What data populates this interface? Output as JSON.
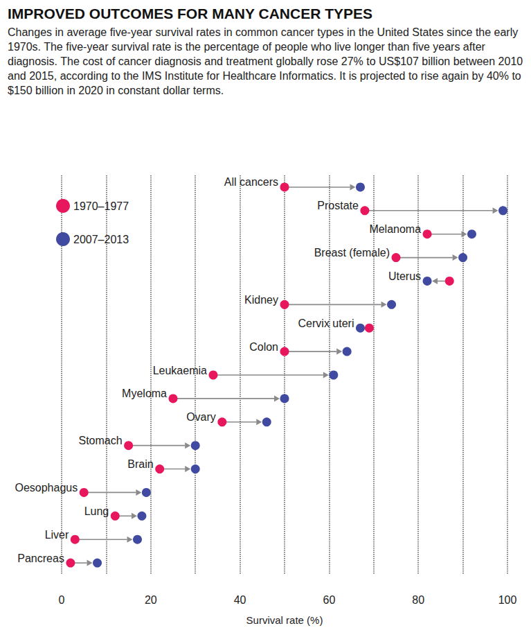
{
  "chart_data": {
    "type": "dumbbell",
    "title": "IMPROVED OUTCOMES FOR MANY CANCER TYPES",
    "subtitle": "Changes in average five-year survival rates in common cancer types in the United States since the early 1970s. The five-year survival rate is the percentage of people who live longer than five years after diagnosis. The cost of cancer diagnosis and treatment globally rose 27% to US$107 billion between 2010 and 2015, according to the IMS Institute for Healthcare Informatics. It is projected to rise again by 40% to $150 billion in 2020 in constant dollar terms.",
    "orientation": "horizontal",
    "categories": [
      "All cancers",
      "Prostate",
      "Melanoma",
      "Breast (female)",
      "Uterus",
      "Kidney",
      "Cervix uteri",
      "Colon",
      "Leukaemia",
      "Myeloma",
      "Ovary",
      "Stomach",
      "Brain",
      "Oesophagus",
      "Lung",
      "Liver",
      "Pancreas"
    ],
    "series": [
      {
        "name": "1970–1977",
        "color": "#e8175d",
        "values": [
          50,
          68,
          82,
          75,
          87,
          50,
          69,
          50,
          34,
          25,
          36,
          15,
          22,
          5,
          12,
          3,
          2
        ]
      },
      {
        "name": "2007–2013",
        "color": "#3f4aa0",
        "values": [
          67,
          99,
          92,
          90,
          82,
          74,
          67,
          64,
          61,
          50,
          46,
          30,
          30,
          19,
          18,
          17,
          8
        ]
      }
    ],
    "x_label": "Survival rate (%)",
    "xlim": [
      0,
      100
    ],
    "xticks": [
      0,
      20,
      40,
      60,
      80,
      100
    ],
    "grid": true,
    "legend": "top-left"
  }
}
